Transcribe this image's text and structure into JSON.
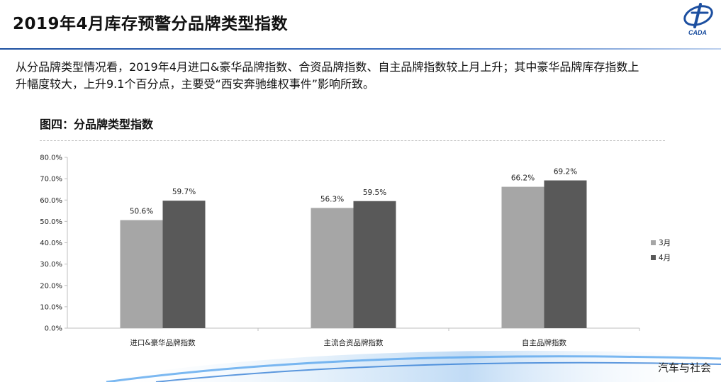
{
  "header": {
    "title": "2019年4月库存预警分品牌类型指数",
    "logo_text": "CADA"
  },
  "description": "从分品牌类型情况看，2019年4月进口&豪华品牌指数、合资品牌指数、自主品牌指数较上月上升；其中豪华品牌库存指数上升幅度较大，上升9.1个百分点，主要受“西安奔驰维权事件”影响所致。",
  "figure_label": "图四：分品牌类型指数",
  "footer": {
    "brand": "汽车与社会"
  },
  "colors": {
    "march": "#a6a6a6",
    "april": "#595959",
    "accent": "#1c4fa0"
  },
  "chart_data": {
    "type": "bar",
    "categories": [
      "进口&豪华品牌指数",
      "主流合资品牌指数",
      "自主品牌指数"
    ],
    "series": [
      {
        "name": "3月",
        "values": [
          50.6,
          56.3,
          66.2
        ],
        "labels": [
          "50.6%",
          "56.3%",
          "66.2%"
        ]
      },
      {
        "name": "4月",
        "values": [
          59.7,
          59.5,
          69.2
        ],
        "labels": [
          "59.7%",
          "59.5%",
          "69.2%"
        ]
      }
    ],
    "ylim": [
      0,
      80
    ],
    "yticks": [
      "0.0%",
      "10.0%",
      "20.0%",
      "30.0%",
      "40.0%",
      "50.0%",
      "60.0%",
      "70.0%",
      "80.0%"
    ],
    "grid": false,
    "legend": "right"
  }
}
